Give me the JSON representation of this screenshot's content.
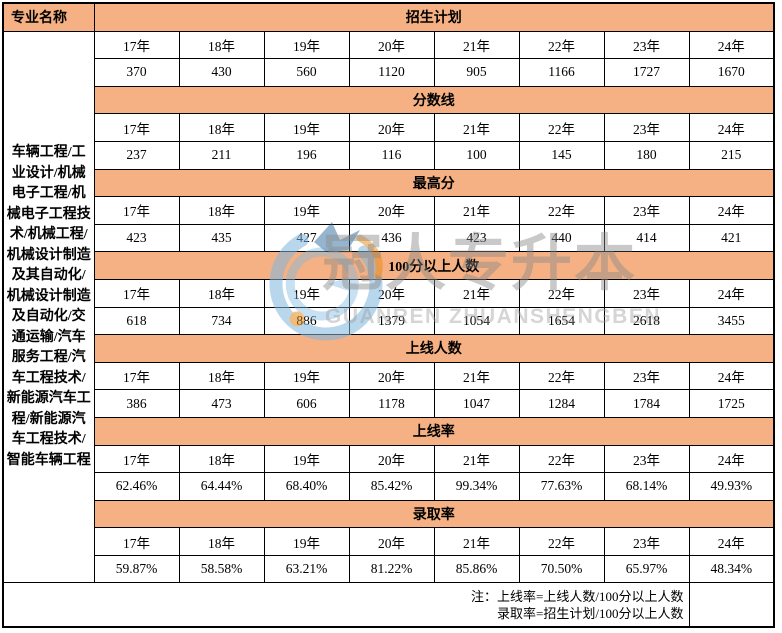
{
  "table": {
    "left_header": "专业名称",
    "majors": "车辆工程/工业设计/机械电子工程/机械电子工程技术/机械工程/机械设计制造及其自动化/机械设计制造及自动化/交通运输/汽车服务工程/汽车工程技术/新能源汽车工程/新能源汽车工程技术/智能车辆工程",
    "years": [
      "17年",
      "18年",
      "19年",
      "20年",
      "21年",
      "22年",
      "23年",
      "24年"
    ],
    "sections": [
      {
        "title": "招生计划",
        "values": [
          "370",
          "430",
          "560",
          "1120",
          "905",
          "1166",
          "1727",
          "1670"
        ]
      },
      {
        "title": "分数线",
        "values": [
          "237",
          "211",
          "196",
          "116",
          "100",
          "145",
          "180",
          "215"
        ]
      },
      {
        "title": "最高分",
        "values": [
          "423",
          "435",
          "427",
          "436",
          "423",
          "440",
          "414",
          "421"
        ]
      },
      {
        "title": "100分以上人数",
        "values": [
          "618",
          "734",
          "886",
          "1379",
          "1054",
          "1654",
          "2618",
          "3455"
        ]
      },
      {
        "title": "上线人数",
        "values": [
          "386",
          "473",
          "606",
          "1178",
          "1047",
          "1284",
          "1784",
          "1725"
        ]
      },
      {
        "title": "上线率",
        "values": [
          "62.46%",
          "64.44%",
          "68.40%",
          "85.42%",
          "99.34%",
          "77.63%",
          "68.14%",
          "49.93%"
        ]
      },
      {
        "title": "录取率",
        "values": [
          "59.87%",
          "58.58%",
          "63.21%",
          "81.22%",
          "85.86%",
          "70.50%",
          "65.97%",
          "48.34%"
        ]
      }
    ],
    "note_line1": "注：上线率=上线人数/100分以上人数",
    "note_line2": "录取率=招生计划/100分以上人数"
  },
  "watermark": {
    "cn": "冠人专升本",
    "en": "GUANREN ZHUANSHENGBEN"
  },
  "colors": {
    "section_header_bg": "#F5B183",
    "border": "#000000",
    "text": "#000000",
    "watermark_gray": "#8A8A8A",
    "watermark_blue_light": "#7FB8E0",
    "watermark_blue_dark": "#1B5F98",
    "watermark_orange": "#E98300"
  },
  "chart_data": {
    "type": "table",
    "row_header": "专业名称",
    "row_header_value": "车辆工程/工业设计/机械电子工程/机械电子工程技术/机械工程/机械设计制造及其自动化/机械设计制造及自动化/交通运输/汽车服务工程/汽车工程技术/新能源汽车工程/新能源汽车工程技术/智能车辆工程",
    "categories": [
      "17年",
      "18年",
      "19年",
      "20年",
      "21年",
      "22年",
      "23年",
      "24年"
    ],
    "series": [
      {
        "name": "招生计划",
        "values": [
          370,
          430,
          560,
          1120,
          905,
          1166,
          1727,
          1670
        ]
      },
      {
        "name": "分数线",
        "values": [
          237,
          211,
          196,
          116,
          100,
          145,
          180,
          215
        ]
      },
      {
        "name": "最高分",
        "values": [
          423,
          435,
          427,
          436,
          423,
          440,
          414,
          421
        ]
      },
      {
        "name": "100分以上人数",
        "values": [
          618,
          734,
          886,
          1379,
          1054,
          1654,
          2618,
          3455
        ]
      },
      {
        "name": "上线人数",
        "values": [
          386,
          473,
          606,
          1178,
          1047,
          1284,
          1784,
          1725
        ]
      },
      {
        "name": "上线率",
        "values": [
          "62.46%",
          "64.44%",
          "68.40%",
          "85.42%",
          "99.34%",
          "77.63%",
          "68.14%",
          "49.93%"
        ]
      },
      {
        "name": "录取率",
        "values": [
          "59.87%",
          "58.58%",
          "63.21%",
          "81.22%",
          "85.86%",
          "70.50%",
          "65.97%",
          "48.34%"
        ]
      }
    ],
    "notes": [
      "注：上线率=上线人数/100分以上人数",
      "录取率=招生计划/100分以上人数"
    ]
  }
}
